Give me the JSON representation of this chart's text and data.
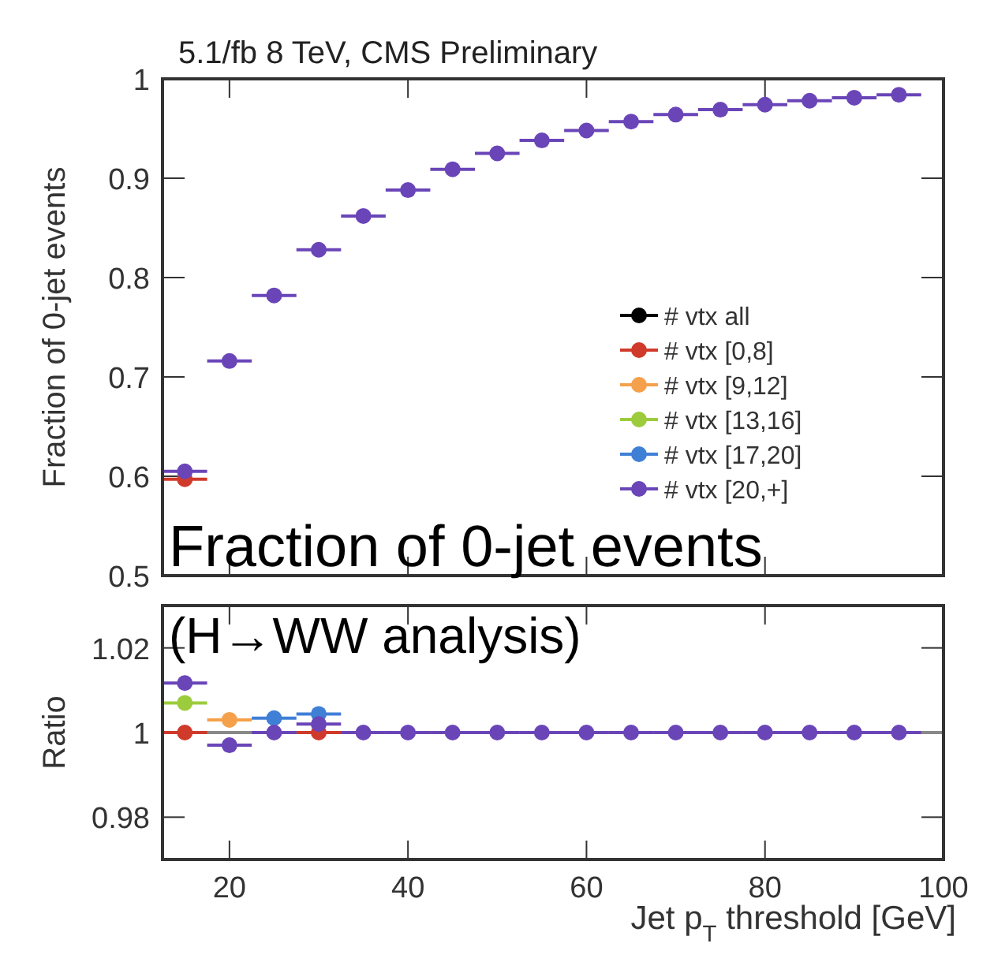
{
  "chart_data": [
    {
      "type": "scatter",
      "title": "5.1/fb 8 TeV, CMS Preliminary",
      "ylabel": "Fraction of 0-jet events",
      "annotations": [
        "Fraction of 0-jet events"
      ],
      "x": [
        15,
        20,
        25,
        30,
        35,
        40,
        45,
        50,
        55,
        60,
        65,
        70,
        75,
        80,
        85,
        90,
        95
      ],
      "xlim": [
        12.5,
        100
      ],
      "xticks": [
        20,
        40,
        60,
        80,
        100
      ],
      "ylim": [
        0.5,
        1
      ],
      "yticks": [
        0.5,
        0.6,
        0.7,
        0.8,
        0.9,
        1
      ],
      "tick_labels": "y",
      "marker": "circle",
      "legend": "right",
      "series": [
        {
          "name": "# vtx all",
          "color": "#000000",
          "values": [
            null,
            null,
            null,
            null,
            null,
            null,
            null,
            null,
            null,
            null,
            null,
            null,
            null,
            null,
            null,
            null,
            null
          ]
        },
        {
          "name": "# vtx [0,8]",
          "color": "#d03a2a",
          "values": [
            0.597,
            null,
            null,
            null,
            null,
            null,
            null,
            null,
            null,
            null,
            null,
            null,
            null,
            null,
            null,
            null,
            null
          ],
          "xerrors": [
            2.5,
            null,
            null,
            null,
            null,
            null,
            null,
            null,
            null,
            null,
            null,
            null,
            null,
            null,
            null,
            null,
            null
          ]
        },
        {
          "name": "# vtx [9,12]",
          "color": "#f5a04a",
          "values": [
            null,
            null,
            null,
            null,
            null,
            null,
            null,
            null,
            null,
            null,
            null,
            null,
            null,
            null,
            null,
            null,
            null
          ]
        },
        {
          "name": "# vtx [13,16]",
          "color": "#9ccc3c",
          "values": [
            null,
            null,
            null,
            null,
            null,
            null,
            null,
            null,
            null,
            null,
            null,
            null,
            null,
            null,
            null,
            null,
            null
          ]
        },
        {
          "name": "# vtx [17,20]",
          "color": "#3f7fd6",
          "values": [
            null,
            null,
            null,
            null,
            null,
            null,
            null,
            null,
            null,
            null,
            null,
            null,
            null,
            null,
            null,
            null,
            null
          ]
        },
        {
          "name": "# vtx [20,+]",
          "color": "#6a45b8",
          "values": [
            0.605,
            0.716,
            0.782,
            0.828,
            0.862,
            0.888,
            0.909,
            0.925,
            0.938,
            0.948,
            0.957,
            0.964,
            0.969,
            0.974,
            0.978,
            0.981,
            0.984
          ],
          "xerrors": [
            2.5,
            2.5,
            2.5,
            2.5,
            2.5,
            2.5,
            2.5,
            2.5,
            2.5,
            2.5,
            2.5,
            2.5,
            2.5,
            2.5,
            2.5,
            2.5,
            2.5
          ]
        }
      ]
    },
    {
      "type": "scatter",
      "ylabel": "Ratio",
      "xlabel": "Jet p$_{T}$ threshold [GeV]",
      "annotations": [
        "(H→WW analysis)"
      ],
      "x": [
        15,
        20,
        25,
        30,
        35,
        40,
        45,
        50,
        55,
        60,
        65,
        70,
        75,
        80,
        85,
        90,
        95
      ],
      "xlim": [
        12.5,
        100
      ],
      "xticks": [
        20,
        40,
        60,
        80,
        100
      ],
      "ylim": [
        0.97,
        1.03
      ],
      "yticks": [
        0.98,
        {
          "value": 1,
          "label": "1"
        },
        1.02
      ],
      "marker": "circle",
      "ref_lines": [
        {
          "axis": "y",
          "value": 1,
          "color": "#888888"
        }
      ],
      "series": [
        {
          "color": "#d03a2a",
          "values": [
            1.0,
            null,
            null,
            1.0,
            null,
            null,
            null,
            null,
            null,
            null,
            null,
            null,
            null,
            null,
            null,
            null,
            null
          ],
          "xerrors": [
            2.5,
            null,
            null,
            2.5,
            null,
            null,
            null,
            null,
            null,
            null,
            null,
            null,
            null,
            null,
            null,
            null,
            null
          ]
        },
        {
          "color": "#f5a04a",
          "values": [
            null,
            1.003,
            null,
            null,
            null,
            null,
            null,
            null,
            null,
            null,
            null,
            null,
            null,
            null,
            null,
            null,
            null
          ],
          "xerrors": [
            null,
            2.5,
            null,
            null,
            null,
            null,
            null,
            null,
            null,
            null,
            null,
            null,
            null,
            null,
            null,
            null,
            null
          ]
        },
        {
          "color": "#9ccc3c",
          "values": [
            1.007,
            null,
            null,
            null,
            null,
            null,
            null,
            null,
            null,
            null,
            null,
            null,
            null,
            null,
            null,
            null,
            null
          ],
          "xerrors": [
            2.5,
            null,
            null,
            null,
            null,
            null,
            null,
            null,
            null,
            null,
            null,
            null,
            null,
            null,
            null,
            null,
            null
          ]
        },
        {
          "color": "#3f7fd6",
          "values": [
            null,
            null,
            1.0034,
            1.0044,
            null,
            null,
            null,
            null,
            null,
            null,
            null,
            null,
            null,
            null,
            null,
            null,
            null
          ],
          "xerrors": [
            null,
            null,
            2.5,
            2.5,
            null,
            null,
            null,
            null,
            null,
            null,
            null,
            null,
            null,
            null,
            null,
            null,
            null
          ]
        },
        {
          "color": "#6a45b8",
          "values": [
            1.0117,
            0.997,
            1.0,
            1.002,
            1.0,
            1.0,
            1.0,
            1.0,
            1.0,
            1.0,
            1.0,
            1.0,
            1.0,
            1.0,
            1.0,
            1.0,
            1.0
          ],
          "xerrors": [
            2.5,
            2.5,
            2.5,
            2.5,
            2.5,
            2.5,
            2.5,
            2.5,
            2.5,
            2.5,
            2.5,
            2.5,
            2.5,
            2.5,
            2.5,
            2.5,
            2.5
          ]
        }
      ]
    }
  ]
}
